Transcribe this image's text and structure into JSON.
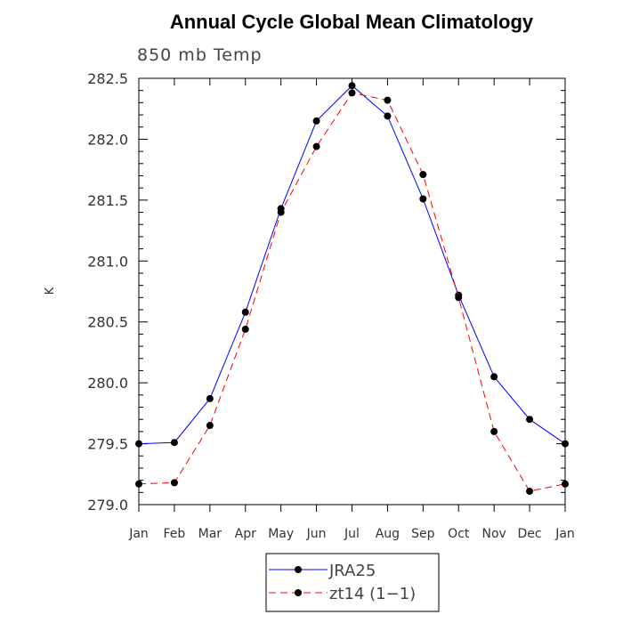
{
  "chart_data": {
    "type": "line",
    "title": "Annual Cycle Global Mean Climatology",
    "subtitle": "850 mb Temp",
    "ylabel": "K",
    "xlabel": "",
    "categories": [
      "Jan",
      "Feb",
      "Mar",
      "Apr",
      "May",
      "Jun",
      "Jul",
      "Aug",
      "Sep",
      "Oct",
      "Nov",
      "Dec",
      "Jan"
    ],
    "ylim": [
      279.0,
      282.5
    ],
    "yticks": [
      279.0,
      279.5,
      280.0,
      280.5,
      281.0,
      281.5,
      282.0,
      282.5
    ],
    "ytick_labels": [
      "279.0",
      "279.5",
      "280.0",
      "280.5",
      "281.0",
      "281.5",
      "282.0",
      "282.5"
    ],
    "series": [
      {
        "name": "JRA25",
        "color": "#0000ff",
        "dash": "solid",
        "values": [
          279.5,
          279.51,
          279.87,
          280.58,
          281.43,
          282.15,
          282.44,
          282.19,
          281.51,
          280.72,
          280.05,
          279.7,
          279.5
        ]
      },
      {
        "name": "zt14 (1−1)",
        "color": "#ff0000",
        "dash": "dashed",
        "values": [
          279.17,
          279.18,
          279.65,
          280.44,
          281.4,
          281.94,
          282.38,
          282.32,
          281.71,
          280.7,
          279.6,
          279.11,
          279.17
        ]
      }
    ],
    "legend_position": "bottom-center"
  }
}
